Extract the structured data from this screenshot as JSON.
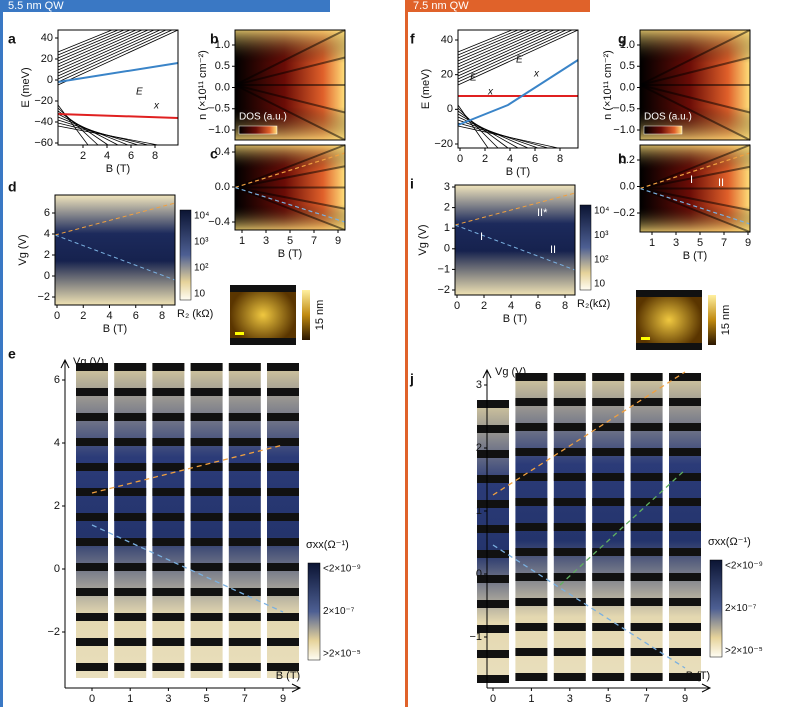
{
  "headers": {
    "left": "5.5 nm QW",
    "right": "7.5 nm QW"
  },
  "panels": [
    {
      "label": "a",
      "ylabel": "E (meV)",
      "xlabel": "B (T)",
      "yticks": [
        "40",
        "20",
        "0",
        "−20",
        "−40",
        "−60"
      ],
      "xticks": [
        "2",
        "4",
        "6",
        "8"
      ],
      "inset_labels": [
        "E",
        "x"
      ]
    },
    {
      "label": "b",
      "ylabel": "n (×10¹¹ cm⁻²)",
      "yticks": [
        "1.0",
        "0.5",
        "0.0",
        "−0.5",
        "−1.0"
      ],
      "legend": "DOS (a.u.)"
    },
    {
      "label": "c",
      "xlabel": "B (T)",
      "yticks": [
        "0.4",
        "0.0",
        "−0.4"
      ],
      "xticks": [
        "1",
        "3",
        "5",
        "7",
        "9"
      ]
    },
    {
      "label": "d",
      "ylabel": "Vg (V)",
      "xlabel": "B (T)",
      "yticks": [
        "6",
        "4",
        "2",
        "0",
        "−2"
      ],
      "xticks": [
        "0",
        "2",
        "4",
        "6",
        "8"
      ],
      "colorbar_ticks": [
        "10⁴",
        "10³",
        "10²",
        "10"
      ],
      "colorbar_label": "R₂ (kΩ)"
    },
    {
      "label": "e",
      "ylabel": "Vg (V)",
      "xlabel": "B (T)",
      "yticks": [
        "6",
        "4",
        "2",
        "0",
        "−2"
      ],
      "xticks": [
        "0",
        "1",
        "3",
        "5",
        "7",
        "9"
      ],
      "colorbar_ticks": [
        "<2×10⁻⁹",
        "2×10⁻⁷",
        ">2×10⁻⁵"
      ],
      "colorbar_label": "σxx(Ω⁻¹)"
    },
    {
      "label": "f",
      "ylabel": "E (meV)",
      "xlabel": "B (T)",
      "yticks": [
        "40",
        "20",
        "0",
        "−20"
      ],
      "xticks": [
        "0",
        "2",
        "4",
        "6",
        "8"
      ],
      "inset_labels": [
        "E",
        "x",
        "E",
        "x"
      ]
    },
    {
      "label": "g",
      "ylabel": "n (×10¹¹ cm⁻²)",
      "yticks": [
        "1.0",
        "0.5",
        "0.0",
        "−0.5",
        "−1.0"
      ],
      "legend": "DOS (a.u.)"
    },
    {
      "label": "h",
      "xlabel": "B (T)",
      "yticks": [
        "0.2",
        "0.0",
        "−0.2"
      ],
      "xticks": [
        "1",
        "3",
        "5",
        "7",
        "9"
      ],
      "region_labels": [
        "I",
        "II"
      ]
    },
    {
      "label": "i",
      "ylabel": "Vg (V)",
      "xlabel": "B (T)",
      "yticks": [
        "3",
        "2",
        "1",
        "0",
        "−1",
        "−2"
      ],
      "xticks": [
        "0",
        "2",
        "4",
        "6",
        "8"
      ],
      "region_labels": [
        "I",
        "II*",
        "II"
      ],
      "colorbar_ticks": [
        "10⁴",
        "10³",
        "10²",
        "10"
      ],
      "colorbar_label": "R₂(kΩ)"
    },
    {
      "label": "j",
      "ylabel": "Vg (V)",
      "xlabel": "B (T)",
      "yticks": [
        "3",
        "2",
        "1",
        "0",
        "−1"
      ],
      "xticks": [
        "0",
        "1",
        "3",
        "5",
        "7",
        "9"
      ],
      "colorbar_ticks": [
        "<2×10⁻⁹",
        "2×10⁻⁷",
        ">2×10⁻⁵"
      ],
      "colorbar_label": "σxx(Ω⁻¹)"
    }
  ],
  "afm": [
    {
      "label": "15 nm"
    },
    {
      "label": "15 nm"
    }
  ]
}
